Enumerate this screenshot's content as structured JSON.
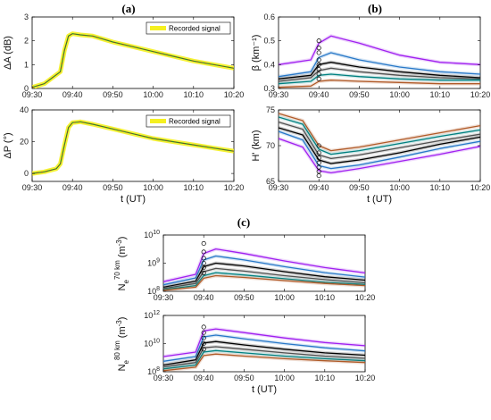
{
  "chart_data": [
    {
      "type": "line",
      "panel_label": "(a)",
      "ylabel": "ΔA (dB)",
      "xlabel": "",
      "xlim": [
        "09:30",
        "10:20"
      ],
      "xticks": [
        "09:30",
        "09:40",
        "09:50",
        "10:00",
        "10:10",
        "10:20"
      ],
      "ylim": [
        0,
        3
      ],
      "yticks": [
        "0",
        "1",
        "2",
        "3"
      ],
      "legend": "Recorded signal",
      "legend_position": "top-right",
      "series": [
        {
          "name": "Recorded signal",
          "color": "#f5f020",
          "x": [
            "09:30",
            "09:33",
            "09:35",
            "09:37",
            "09:38",
            "09:39",
            "09:40",
            "09:42",
            "09:45",
            "09:48",
            "09:50",
            "09:55",
            "10:00",
            "10:05",
            "10:10",
            "10:15",
            "10:20"
          ],
          "y": [
            0.05,
            0.2,
            0.45,
            0.7,
            1.6,
            2.2,
            2.3,
            2.25,
            2.2,
            2.05,
            1.95,
            1.75,
            1.55,
            1.35,
            1.15,
            1.0,
            0.85
          ]
        }
      ]
    },
    {
      "type": "line",
      "panel_label": "",
      "ylabel": "ΔP (°)",
      "xlabel": "t (UT)",
      "xlim": [
        "09:30",
        "10:20"
      ],
      "xticks": [
        "09:30",
        "09:40",
        "09:50",
        "10:00",
        "10:10",
        "10:20"
      ],
      "ylim": [
        -5,
        40
      ],
      "yticks": [
        "0",
        "20",
        "40"
      ],
      "legend": "Recorded signal",
      "legend_position": "top-right",
      "series": [
        {
          "name": "Recorded signal",
          "color": "#f5f020",
          "x": [
            "09:30",
            "09:33",
            "09:36",
            "09:37",
            "09:38",
            "09:39",
            "09:40",
            "09:42",
            "09:45",
            "09:50",
            "09:55",
            "10:00",
            "10:05",
            "10:10",
            "10:15",
            "10:20"
          ],
          "y": [
            0,
            1,
            3,
            6,
            18,
            29,
            32,
            32.5,
            31,
            28,
            25,
            22,
            20,
            18,
            16,
            14
          ]
        }
      ]
    },
    {
      "type": "line",
      "panel_label": "(b)",
      "ylabel": "β (km⁻¹)",
      "xlabel": "",
      "xlim": [
        "09:30",
        "10:20"
      ],
      "xticks": [
        "09:30",
        "09:40",
        "09:50",
        "10:00",
        "10:10",
        "10:20"
      ],
      "ylim": [
        0.3,
        0.6
      ],
      "yticks": [
        "0.3",
        "0.4",
        "0.5",
        "0.6"
      ],
      "series": [
        {
          "color": "#a020f0",
          "x": [
            "09:30",
            "09:38",
            "09:40",
            "09:43",
            "09:50",
            "10:00",
            "10:10",
            "10:20"
          ],
          "y": [
            0.4,
            0.42,
            0.49,
            0.52,
            0.49,
            0.44,
            0.41,
            0.4
          ]
        },
        {
          "color": "#2878c8",
          "x": [
            "09:30",
            "09:38",
            "09:40",
            "09:43",
            "09:50",
            "10:00",
            "10:10",
            "10:20"
          ],
          "y": [
            0.35,
            0.37,
            0.43,
            0.45,
            0.42,
            0.39,
            0.37,
            0.36
          ]
        },
        {
          "color": "#000000",
          "x": [
            "09:30",
            "09:38",
            "09:40",
            "09:43",
            "09:50",
            "10:00",
            "10:10",
            "10:20"
          ],
          "y": [
            0.34,
            0.355,
            0.4,
            0.41,
            0.39,
            0.37,
            0.355,
            0.345
          ]
        },
        {
          "color": "#505050",
          "x": [
            "09:30",
            "09:38",
            "09:40",
            "09:43",
            "09:50",
            "10:00",
            "10:10",
            "10:20"
          ],
          "y": [
            0.33,
            0.345,
            0.375,
            0.385,
            0.37,
            0.355,
            0.345,
            0.34
          ]
        },
        {
          "color": "#008080",
          "x": [
            "09:30",
            "09:38",
            "09:40",
            "09:43",
            "09:50",
            "10:00",
            "10:10",
            "10:20"
          ],
          "y": [
            0.32,
            0.33,
            0.355,
            0.36,
            0.35,
            0.34,
            0.335,
            0.335
          ]
        },
        {
          "color": "#b05a28",
          "x": [
            "09:30",
            "09:38",
            "09:40",
            "09:43",
            "09:50",
            "10:00",
            "10:10",
            "10:20"
          ],
          "y": [
            0.305,
            0.31,
            0.33,
            0.335,
            0.33,
            0.325,
            0.32,
            0.32
          ]
        }
      ],
      "markers": {
        "x": "09:40",
        "y": [
          0.5,
          0.47,
          0.45,
          0.42,
          0.4,
          0.38,
          0.36,
          0.34
        ]
      }
    },
    {
      "type": "line",
      "panel_label": "",
      "ylabel": "H' (km)",
      "xlabel": "t (UT)",
      "xlim": [
        "09:30",
        "10:20"
      ],
      "xticks": [
        "09:30",
        "09:40",
        "09:50",
        "10:00",
        "10:10",
        "10:20"
      ],
      "ylim": [
        65,
        75
      ],
      "yticks": [
        "65",
        "70",
        "75"
      ],
      "series": [
        {
          "color": "#b05a28",
          "x": [
            "09:30",
            "09:36",
            "09:40",
            "09:43",
            "09:50",
            "10:00",
            "10:10",
            "10:20"
          ],
          "y": [
            74.5,
            73.5,
            70,
            69.3,
            69.8,
            70.8,
            71.8,
            72.8
          ]
        },
        {
          "color": "#008080",
          "x": [
            "09:30",
            "09:36",
            "09:40",
            "09:43",
            "09:50",
            "10:00",
            "10:10",
            "10:20"
          ],
          "y": [
            74,
            73,
            69.5,
            68.8,
            69.3,
            70.3,
            71.3,
            72.2
          ]
        },
        {
          "color": "#505050",
          "x": [
            "09:30",
            "09:36",
            "09:40",
            "09:43",
            "09:50",
            "10:00",
            "10:10",
            "10:20"
          ],
          "y": [
            73.3,
            72.3,
            68.7,
            68.2,
            68.7,
            69.7,
            70.7,
            71.6
          ]
        },
        {
          "color": "#000000",
          "x": [
            "09:30",
            "09:36",
            "09:40",
            "09:43",
            "09:50",
            "10:00",
            "10:10",
            "10:20"
          ],
          "y": [
            72.5,
            71.5,
            68,
            67.5,
            68,
            69,
            70.2,
            71.2
          ]
        },
        {
          "color": "#2878c8",
          "x": [
            "09:30",
            "09:36",
            "09:40",
            "09:43",
            "09:50",
            "10:00",
            "10:10",
            "10:20"
          ],
          "y": [
            72,
            70.8,
            67.2,
            66.8,
            67.3,
            68.4,
            69.6,
            70.6
          ]
        },
        {
          "color": "#a020f0",
          "x": [
            "09:30",
            "09:36",
            "09:40",
            "09:43",
            "09:50",
            "10:00",
            "10:10",
            "10:20"
          ],
          "y": [
            71,
            69.8,
            66.5,
            66.2,
            66.8,
            67.8,
            68.8,
            69.9
          ]
        }
      ],
      "markers": {
        "x": "09:40",
        "y": [
          70,
          69,
          68.3,
          67.6,
          67,
          66.4,
          65.8
        ]
      }
    },
    {
      "type": "line",
      "panel_label": "(c)",
      "ylabel_main": "N",
      "ylabel_sub": "e",
      "ylabel_sup": "70 km",
      "ylabel_unit": "(m",
      "ylabel_unit_sup": "-3",
      "ylabel_close": ")",
      "xlabel": "",
      "xlim": [
        "09:30",
        "10:20"
      ],
      "xticks": [
        "09:30",
        "09:40",
        "09:50",
        "10:00",
        "10:10",
        "10:20"
      ],
      "yscale": "log",
      "ylim": [
        100000000.0,
        10000000000.0
      ],
      "yticks": [
        {
          "base": "10",
          "exp": "8",
          "value": 100000000.0
        },
        {
          "base": "10",
          "exp": "9",
          "value": 1000000000.0
        },
        {
          "base": "10",
          "exp": "10",
          "value": 10000000000.0
        }
      ],
      "series": [
        {
          "color": "#a020f0",
          "x": [
            "09:30",
            "09:38",
            "09:40",
            "09:43",
            "09:50",
            "10:00",
            "10:10",
            "10:20"
          ],
          "y": [
            220000000.0,
            400000000.0,
            2200000000.0,
            3200000000.0,
            2200000000.0,
            1200000000.0,
            700000000.0,
            450000000.0
          ]
        },
        {
          "color": "#2878c8",
          "x": [
            "09:30",
            "09:38",
            "09:40",
            "09:43",
            "09:50",
            "10:00",
            "10:10",
            "10:20"
          ],
          "y": [
            170000000.0,
            300000000.0,
            1300000000.0,
            1800000000.0,
            1300000000.0,
            750000000.0,
            460000000.0,
            320000000.0
          ]
        },
        {
          "color": "#000000",
          "x": [
            "09:30",
            "09:38",
            "09:40",
            "09:43",
            "09:50",
            "10:00",
            "10:10",
            "10:20"
          ],
          "y": [
            140000000.0,
            230000000.0,
            750000000.0,
            1000000000.0,
            800000000.0,
            500000000.0,
            330000000.0,
            250000000.0
          ]
        },
        {
          "color": "#505050",
          "x": [
            "09:30",
            "09:38",
            "09:40",
            "09:43",
            "09:50",
            "10:00",
            "10:10",
            "10:20"
          ],
          "y": [
            125000000.0,
            190000000.0,
            500000000.0,
            650000000.0,
            520000000.0,
            360000000.0,
            260000000.0,
            200000000.0
          ]
        },
        {
          "color": "#008080",
          "x": [
            "09:30",
            "09:38",
            "09:40",
            "09:43",
            "09:50",
            "10:00",
            "10:10",
            "10:20"
          ],
          "y": [
            115000000.0,
            160000000.0,
            360000000.0,
            460000000.0,
            380000000.0,
            280000000.0,
            210000000.0,
            175000000.0
          ]
        },
        {
          "color": "#b05a28",
          "x": [
            "09:30",
            "09:38",
            "09:40",
            "09:43",
            "09:50",
            "10:00",
            "10:10",
            "10:20"
          ],
          "y": [
            108000000.0,
            140000000.0,
            290000000.0,
            360000000.0,
            310000000.0,
            240000000.0,
            190000000.0,
            160000000.0
          ]
        }
      ],
      "markers": {
        "x": "09:40",
        "y": [
          5000000000.0,
          2500000000.0,
          1500000000.0,
          1000000000.0,
          700000000.0,
          450000000.0
        ]
      }
    },
    {
      "type": "line",
      "panel_label": "",
      "ylabel_main": "N",
      "ylabel_sub": "e",
      "ylabel_sup": "80 km",
      "ylabel_unit": "(m",
      "ylabel_unit_sup": "-3",
      "ylabel_close": ")",
      "xlabel": "t (UT)",
      "xlim": [
        "09:30",
        "10:20"
      ],
      "xticks": [
        "09:30",
        "09:40",
        "09:50",
        "10:00",
        "10:10",
        "10:20"
      ],
      "yscale": "log",
      "ylim": [
        100000000.0,
        1000000000000.0
      ],
      "yticks": [
        {
          "base": "10",
          "exp": "8",
          "value": 100000000.0
        },
        {
          "base": "10",
          "exp": "10",
          "value": 10000000000.0
        },
        {
          "base": "10",
          "exp": "12",
          "value": 1000000000000.0
        }
      ],
      "series": [
        {
          "color": "#a020f0",
          "x": [
            "09:30",
            "09:38",
            "09:40",
            "09:43",
            "09:50",
            "10:00",
            "10:10",
            "10:20"
          ],
          "y": [
            1200000000.0,
            2500000000.0,
            80000000000.0,
            110000000000.0,
            60000000000.0,
            25000000000.0,
            12000000000.0,
            7000000000.0
          ]
        },
        {
          "color": "#2878c8",
          "x": [
            "09:30",
            "09:38",
            "09:40",
            "09:43",
            "09:50",
            "10:00",
            "10:10",
            "10:20"
          ],
          "y": [
            550000000.0,
            1200000000.0,
            30000000000.0,
            40000000000.0,
            22000000000.0,
            10000000000.0,
            5000000000.0,
            3000000000.0
          ]
        },
        {
          "color": "#000000",
          "x": [
            "09:30",
            "09:38",
            "09:40",
            "09:43",
            "09:50",
            "10:00",
            "10:10",
            "10:20"
          ],
          "y": [
            300000000.0,
            700000000.0,
            11000000000.0,
            14000000000.0,
            8000000000.0,
            4000000000.0,
            2200000000.0,
            1500000000.0
          ]
        },
        {
          "color": "#505050",
          "x": [
            "09:30",
            "09:38",
            "09:40",
            "09:43",
            "09:50",
            "10:00",
            "10:10",
            "10:20"
          ],
          "y": [
            220000000.0,
            450000000.0,
            5000000000.0,
            6000000000.0,
            4000000000.0,
            2200000000.0,
            1300000000.0,
            900000000.0
          ]
        },
        {
          "color": "#008080",
          "x": [
            "09:30",
            "09:38",
            "09:40",
            "09:43",
            "09:50",
            "10:00",
            "10:10",
            "10:20"
          ],
          "y": [
            160000000.0,
            300000000.0,
            2500000000.0,
            3200000000.0,
            2200000000.0,
            1300000000.0,
            850000000.0,
            600000000.0
          ]
        },
        {
          "color": "#b05a28",
          "x": [
            "09:30",
            "09:38",
            "09:40",
            "09:43",
            "09:50",
            "10:00",
            "10:10",
            "10:20"
          ],
          "y": [
            120000000.0,
            210000000.0,
            1400000000.0,
            1800000000.0,
            1300000000.0,
            850000000.0,
            600000000.0,
            450000000.0
          ]
        }
      ],
      "markers": {
        "x": "09:40",
        "y": [
          150000000000.0,
          60000000000.0,
          25000000000.0,
          10000000000.0,
          4000000000.0
        ]
      }
    }
  ]
}
